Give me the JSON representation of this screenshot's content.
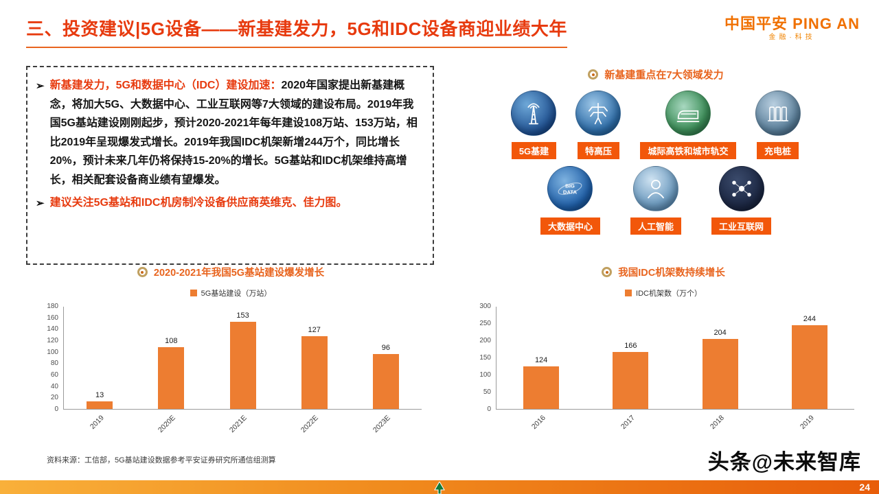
{
  "header": {
    "title": "三、投资建议|5G设备——新基建发力，5G和IDC设备商迎业绩大年",
    "logo_cn": "中国平安",
    "logo_en": "PING AN",
    "logo_sub": "金融·科技"
  },
  "key_points": {
    "bullet_glyph": "➢",
    "bullet1_lead": "新基建发力，5G和数据中心（IDC）建设加速：",
    "bullet1_body": "2020年国家提出新基建概念，将加大5G、大数据中心、工业互联网等7大领域的建设布局。2019年我国5G基站建设刚刚起步，预计2020-2021年每年建设108万站、153万站，相比2019年呈现爆发式增长。2019年我国IDC机架新增244万个，同比增长20%，预计未来几年仍将保持15-20%的增长。5G基站和IDC机架维持高增长，相关配套设备商业绩有望爆发。",
    "bullet2": "建议关注5G基站和IDC机房制冷设备供应商英维克、佳力图。"
  },
  "sectors": {
    "title": "新基建重点在7大领域发力",
    "row1": [
      {
        "label": "5G基建",
        "icon": "5g-tower-icon"
      },
      {
        "label": "特高压",
        "icon": "power-pylon-icon"
      },
      {
        "label": "城际高铁和城市轨交",
        "icon": "highspeed-train-icon"
      },
      {
        "label": "充电桩",
        "icon": "charging-pile-icon"
      }
    ],
    "row2": [
      {
        "label": "大数据中心",
        "icon": "big-data-icon",
        "circle_text_1": "BIG",
        "circle_text_2": "DATA"
      },
      {
        "label": "人工智能",
        "icon": "ai-icon"
      },
      {
        "label": "工业互联网",
        "icon": "industrial-internet-icon"
      }
    ]
  },
  "chart_data": [
    {
      "type": "bar",
      "title": "2020-2021年我国5G基站建设爆发增长",
      "legend": "5G基站建设（万站）",
      "categories": [
        "2019",
        "2020E",
        "2021E",
        "2022E",
        "2023E"
      ],
      "values": [
        13,
        108,
        153,
        127,
        96
      ],
      "ylim": [
        0,
        180
      ],
      "ystep": 20,
      "bar_color": "#ED7D31",
      "grid": false,
      "legend_position": "top"
    },
    {
      "type": "bar",
      "title": "我国IDC机架数持续增长",
      "legend": "IDC机架数（万个）",
      "categories": [
        "2016",
        "2017",
        "2018",
        "2019"
      ],
      "values": [
        124,
        166,
        204,
        244
      ],
      "ylim": [
        0,
        300
      ],
      "ystep": 50,
      "bar_color": "#ED7D31",
      "grid": false,
      "legend_position": "top"
    }
  ],
  "footer": {
    "source": "资料来源：工信部，5G基站建设数据参考平安证券研究所通信组测算",
    "watermark": "头条@未来智库",
    "page_number": "24"
  },
  "colors": {
    "accent_red": "#e73a0e",
    "accent_orange": "#e8641e",
    "label_box_orange": "#f2570a",
    "bar_orange": "#ED7D31"
  }
}
